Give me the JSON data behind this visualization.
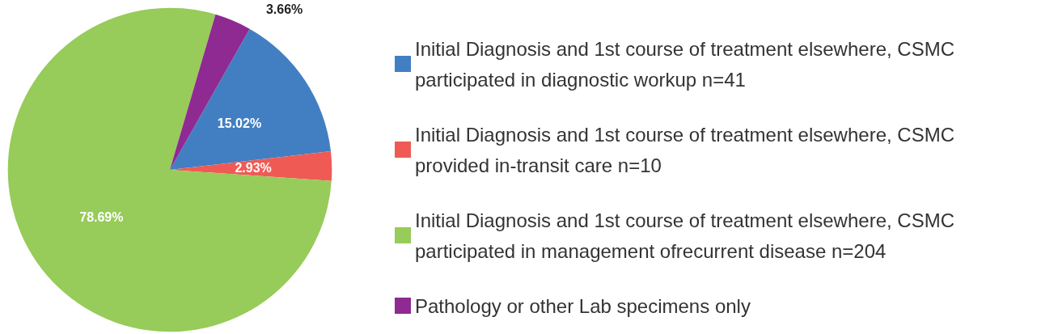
{
  "chart_data": {
    "type": "pie",
    "categories": [
      "Initial Diagnosis and 1st course of treatment elsewhere, CSMC participated in diagnostic workup n=41",
      "Initial Diagnosis and 1st course of treatment elsewhere, CSMC provided in-transit care n=10",
      "Initial Diagnosis and 1st course of treatment elsewhere, CSMC participated in management ofrecurrent disease n=204",
      "Pathology or other Lab specimens only"
    ],
    "values": [
      15.02,
      2.93,
      78.69,
      3.66
    ],
    "colors": [
      "#427fc2",
      "#f05a55",
      "#97cb5a",
      "#8e2a91"
    ],
    "value_labels": [
      "15.02%",
      "2.93%",
      "78.69%",
      "3.66%"
    ],
    "legend": "right"
  }
}
